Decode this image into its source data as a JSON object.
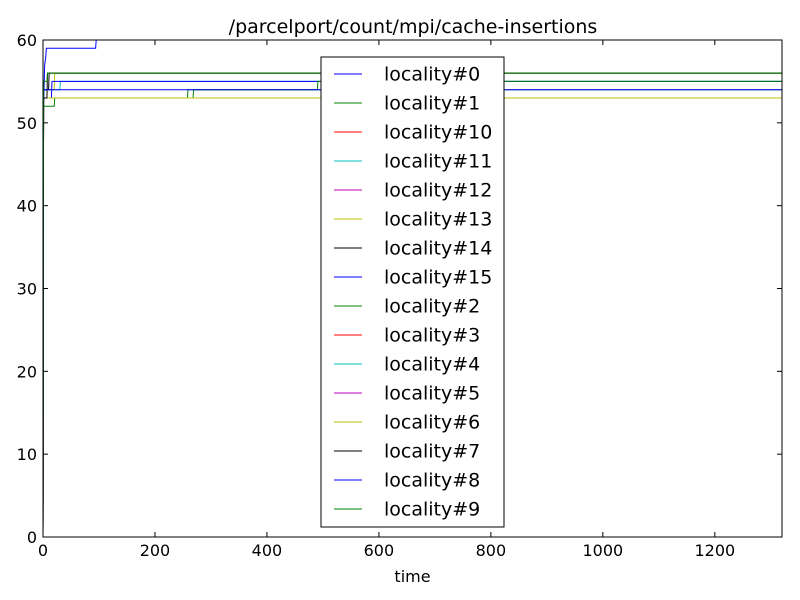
{
  "chart_data": {
    "type": "line",
    "title": "/parcelport/count/mpi/cache-insertions",
    "xlabel": "time",
    "ylabel": "",
    "xlim": [
      0,
      1320
    ],
    "ylim": [
      0,
      60
    ],
    "xticks": [
      0,
      200,
      400,
      600,
      800,
      1000,
      1200
    ],
    "yticks": [
      0,
      10,
      20,
      30,
      40,
      50,
      60
    ],
    "grid": false,
    "legend_position": "center",
    "series": [
      {
        "name": "locality#0",
        "color": "#0000ff",
        "points": [
          [
            0,
            0
          ],
          [
            1,
            52
          ],
          [
            3,
            57
          ],
          [
            5,
            58
          ],
          [
            6,
            59
          ],
          [
            94,
            59
          ],
          [
            95,
            60
          ],
          [
            1320,
            60
          ]
        ]
      },
      {
        "name": "locality#1",
        "color": "#008000",
        "points": [
          [
            0,
            0
          ],
          [
            1,
            53
          ],
          [
            258,
            53
          ],
          [
            259,
            54
          ],
          [
            1320,
            54
          ]
        ]
      },
      {
        "name": "locality#10",
        "color": "#ff0000",
        "points": [
          [
            0,
            0
          ],
          [
            1,
            53
          ],
          [
            1320,
            53
          ]
        ]
      },
      {
        "name": "locality#11",
        "color": "#00bfbf",
        "points": [
          [
            0,
            0
          ],
          [
            1,
            54
          ],
          [
            30,
            54
          ],
          [
            31,
            55
          ],
          [
            1320,
            55
          ]
        ]
      },
      {
        "name": "locality#12",
        "color": "#bf00bf",
        "points": [
          [
            0,
            0
          ],
          [
            1,
            53
          ],
          [
            1320,
            53
          ]
        ]
      },
      {
        "name": "locality#13",
        "color": "#bfbf00",
        "points": [
          [
            0,
            0
          ],
          [
            1,
            54
          ],
          [
            20,
            54
          ],
          [
            21,
            56
          ],
          [
            1320,
            56
          ]
        ]
      },
      {
        "name": "locality#14",
        "color": "#000000",
        "points": [
          [
            0,
            0
          ],
          [
            1,
            54
          ],
          [
            10,
            54
          ],
          [
            11,
            56
          ],
          [
            1320,
            56
          ]
        ]
      },
      {
        "name": "locality#15",
        "color": "#0000ff",
        "points": [
          [
            0,
            0
          ],
          [
            1,
            53
          ],
          [
            15,
            53
          ],
          [
            16,
            55
          ],
          [
            1320,
            55
          ]
        ]
      },
      {
        "name": "locality#2",
        "color": "#008000",
        "points": [
          [
            0,
            0
          ],
          [
            1,
            52
          ],
          [
            20,
            52
          ],
          [
            21,
            53
          ],
          [
            268,
            53
          ],
          [
            269,
            54
          ],
          [
            490,
            54
          ],
          [
            491,
            55
          ],
          [
            1320,
            55
          ]
        ]
      },
      {
        "name": "locality#3",
        "color": "#ff0000",
        "points": [
          [
            0,
            0
          ],
          [
            1,
            53
          ],
          [
            1320,
            53
          ]
        ]
      },
      {
        "name": "locality#4",
        "color": "#00bfbf",
        "points": [
          [
            0,
            0
          ],
          [
            1,
            53
          ],
          [
            1320,
            53
          ]
        ]
      },
      {
        "name": "locality#5",
        "color": "#bf00bf",
        "points": [
          [
            0,
            0
          ],
          [
            1,
            53
          ],
          [
            1320,
            53
          ]
        ]
      },
      {
        "name": "locality#6",
        "color": "#bfbf00",
        "points": [
          [
            0,
            0
          ],
          [
            1,
            53
          ],
          [
            1320,
            53
          ]
        ]
      },
      {
        "name": "locality#7",
        "color": "#000000",
        "points": [
          [
            0,
            0
          ],
          [
            1,
            53
          ],
          [
            7,
            53
          ],
          [
            8,
            56
          ],
          [
            1320,
            56
          ]
        ]
      },
      {
        "name": "locality#8",
        "color": "#0000ff",
        "points": [
          [
            0,
            0
          ],
          [
            1,
            54
          ],
          [
            1320,
            54
          ]
        ]
      },
      {
        "name": "locality#9",
        "color": "#008000",
        "points": [
          [
            0,
            0
          ],
          [
            1,
            55
          ],
          [
            7,
            55
          ],
          [
            8,
            56
          ],
          [
            1320,
            56
          ]
        ]
      }
    ]
  }
}
